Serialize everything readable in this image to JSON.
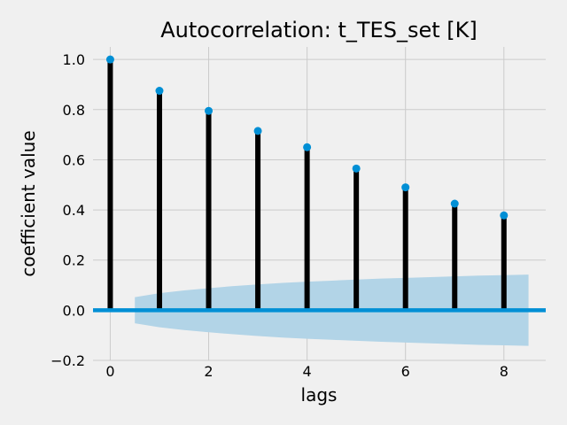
{
  "chart_data": {
    "type": "stem",
    "title": "Autocorrelation: t_TES_set [K]",
    "xlabel": "lags",
    "ylabel": "coefficient value",
    "xlim": [
      -0.35,
      8.85
    ],
    "ylim": [
      -0.2,
      1.05
    ],
    "x_ticks": [
      "0",
      "2",
      "4",
      "6",
      "8"
    ],
    "y_ticks": [
      "−0.2",
      "0.0",
      "0.2",
      "0.4",
      "0.6",
      "0.8",
      "1.0"
    ],
    "grid": true,
    "series": [
      {
        "x": [
          0,
          1,
          2,
          3,
          4,
          5,
          6,
          7,
          8
        ],
        "values": [
          1.0,
          0.875,
          0.795,
          0.715,
          0.65,
          0.565,
          0.49,
          0.425,
          0.378
        ]
      }
    ],
    "confidence_band": {
      "x": [
        0.5,
        1,
        1.5,
        2,
        2.5,
        3,
        3.5,
        4,
        4.5,
        5,
        5.5,
        6,
        6.5,
        7,
        7.5,
        8,
        8.5
      ],
      "upper": [
        0.052,
        0.068,
        0.079,
        0.088,
        0.096,
        0.103,
        0.109,
        0.114,
        0.118,
        0.122,
        0.126,
        0.129,
        0.132,
        0.135,
        0.138,
        0.14,
        0.142
      ],
      "lower": [
        -0.052,
        -0.068,
        -0.079,
        -0.088,
        -0.096,
        -0.103,
        -0.109,
        -0.114,
        -0.118,
        -0.122,
        -0.126,
        -0.129,
        -0.132,
        -0.135,
        -0.138,
        -0.14,
        -0.142
      ]
    },
    "colors": {
      "background": "#f0f0f0",
      "grid": "#cbcbcb",
      "stem": "#000000",
      "marker": "#008fd5",
      "zero_line": "#008fd5",
      "band": "#b2d4e7"
    }
  }
}
